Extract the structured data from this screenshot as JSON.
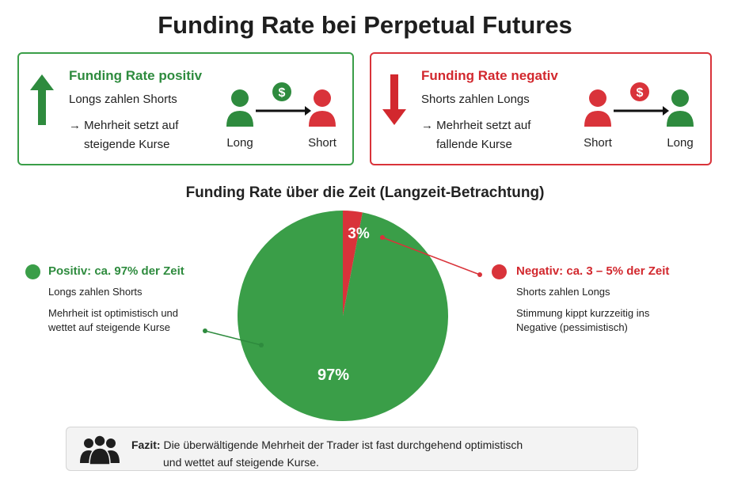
{
  "title": "Funding Rate bei Perpetual Futures",
  "positive_box": {
    "title": "Funding Rate positiv",
    "subtitle": "Longs zahlen Shorts",
    "note_line1": "→ Mehrheit setzt auf",
    "note_line2": "steigende Kurse",
    "from_label": "Long",
    "to_label": "Short",
    "coin_symbol": "$"
  },
  "negative_box": {
    "title": "Funding Rate negativ",
    "subtitle": "Shorts zahlen Longs",
    "note_line1": "→ Mehrheit setzt auf",
    "note_line2": "fallende Kurse",
    "from_label": "Short",
    "to_label": "Long",
    "coin_symbol": "$"
  },
  "colors": {
    "green": "#3a9e48",
    "dark_green": "#2e8b3e",
    "red": "#d9333a"
  },
  "chart_data": {
    "type": "pie",
    "title": "Funding Rate über die Zeit (Langzeit-Betrachtung)",
    "slices": [
      {
        "label": "Positiv",
        "value": 97,
        "display": "97%",
        "color": "#3a9e48"
      },
      {
        "label": "Negativ",
        "value": 3,
        "display": "3%",
        "color": "#d9333a"
      }
    ]
  },
  "legend": {
    "positive": {
      "head": "Positiv: ca. 97% der Zeit",
      "line1": "Longs zahlen Shorts",
      "line2": "Mehrheit ist optimistisch und",
      "line3": "wettet auf steigende Kurse"
    },
    "negative": {
      "head": "Negativ: ca. 3 – 5% der Zeit",
      "line1": "Shorts zahlen Longs",
      "line2": "Stimmung kippt kurzzeitig ins",
      "line3": "Negative (pessimistisch)"
    }
  },
  "fazit": {
    "label": "Fazit:",
    "line1": "Die überwältigende Mehrheit der Trader ist fast durchgehend optimistisch",
    "line2": "und wettet auf steigende Kurse."
  }
}
